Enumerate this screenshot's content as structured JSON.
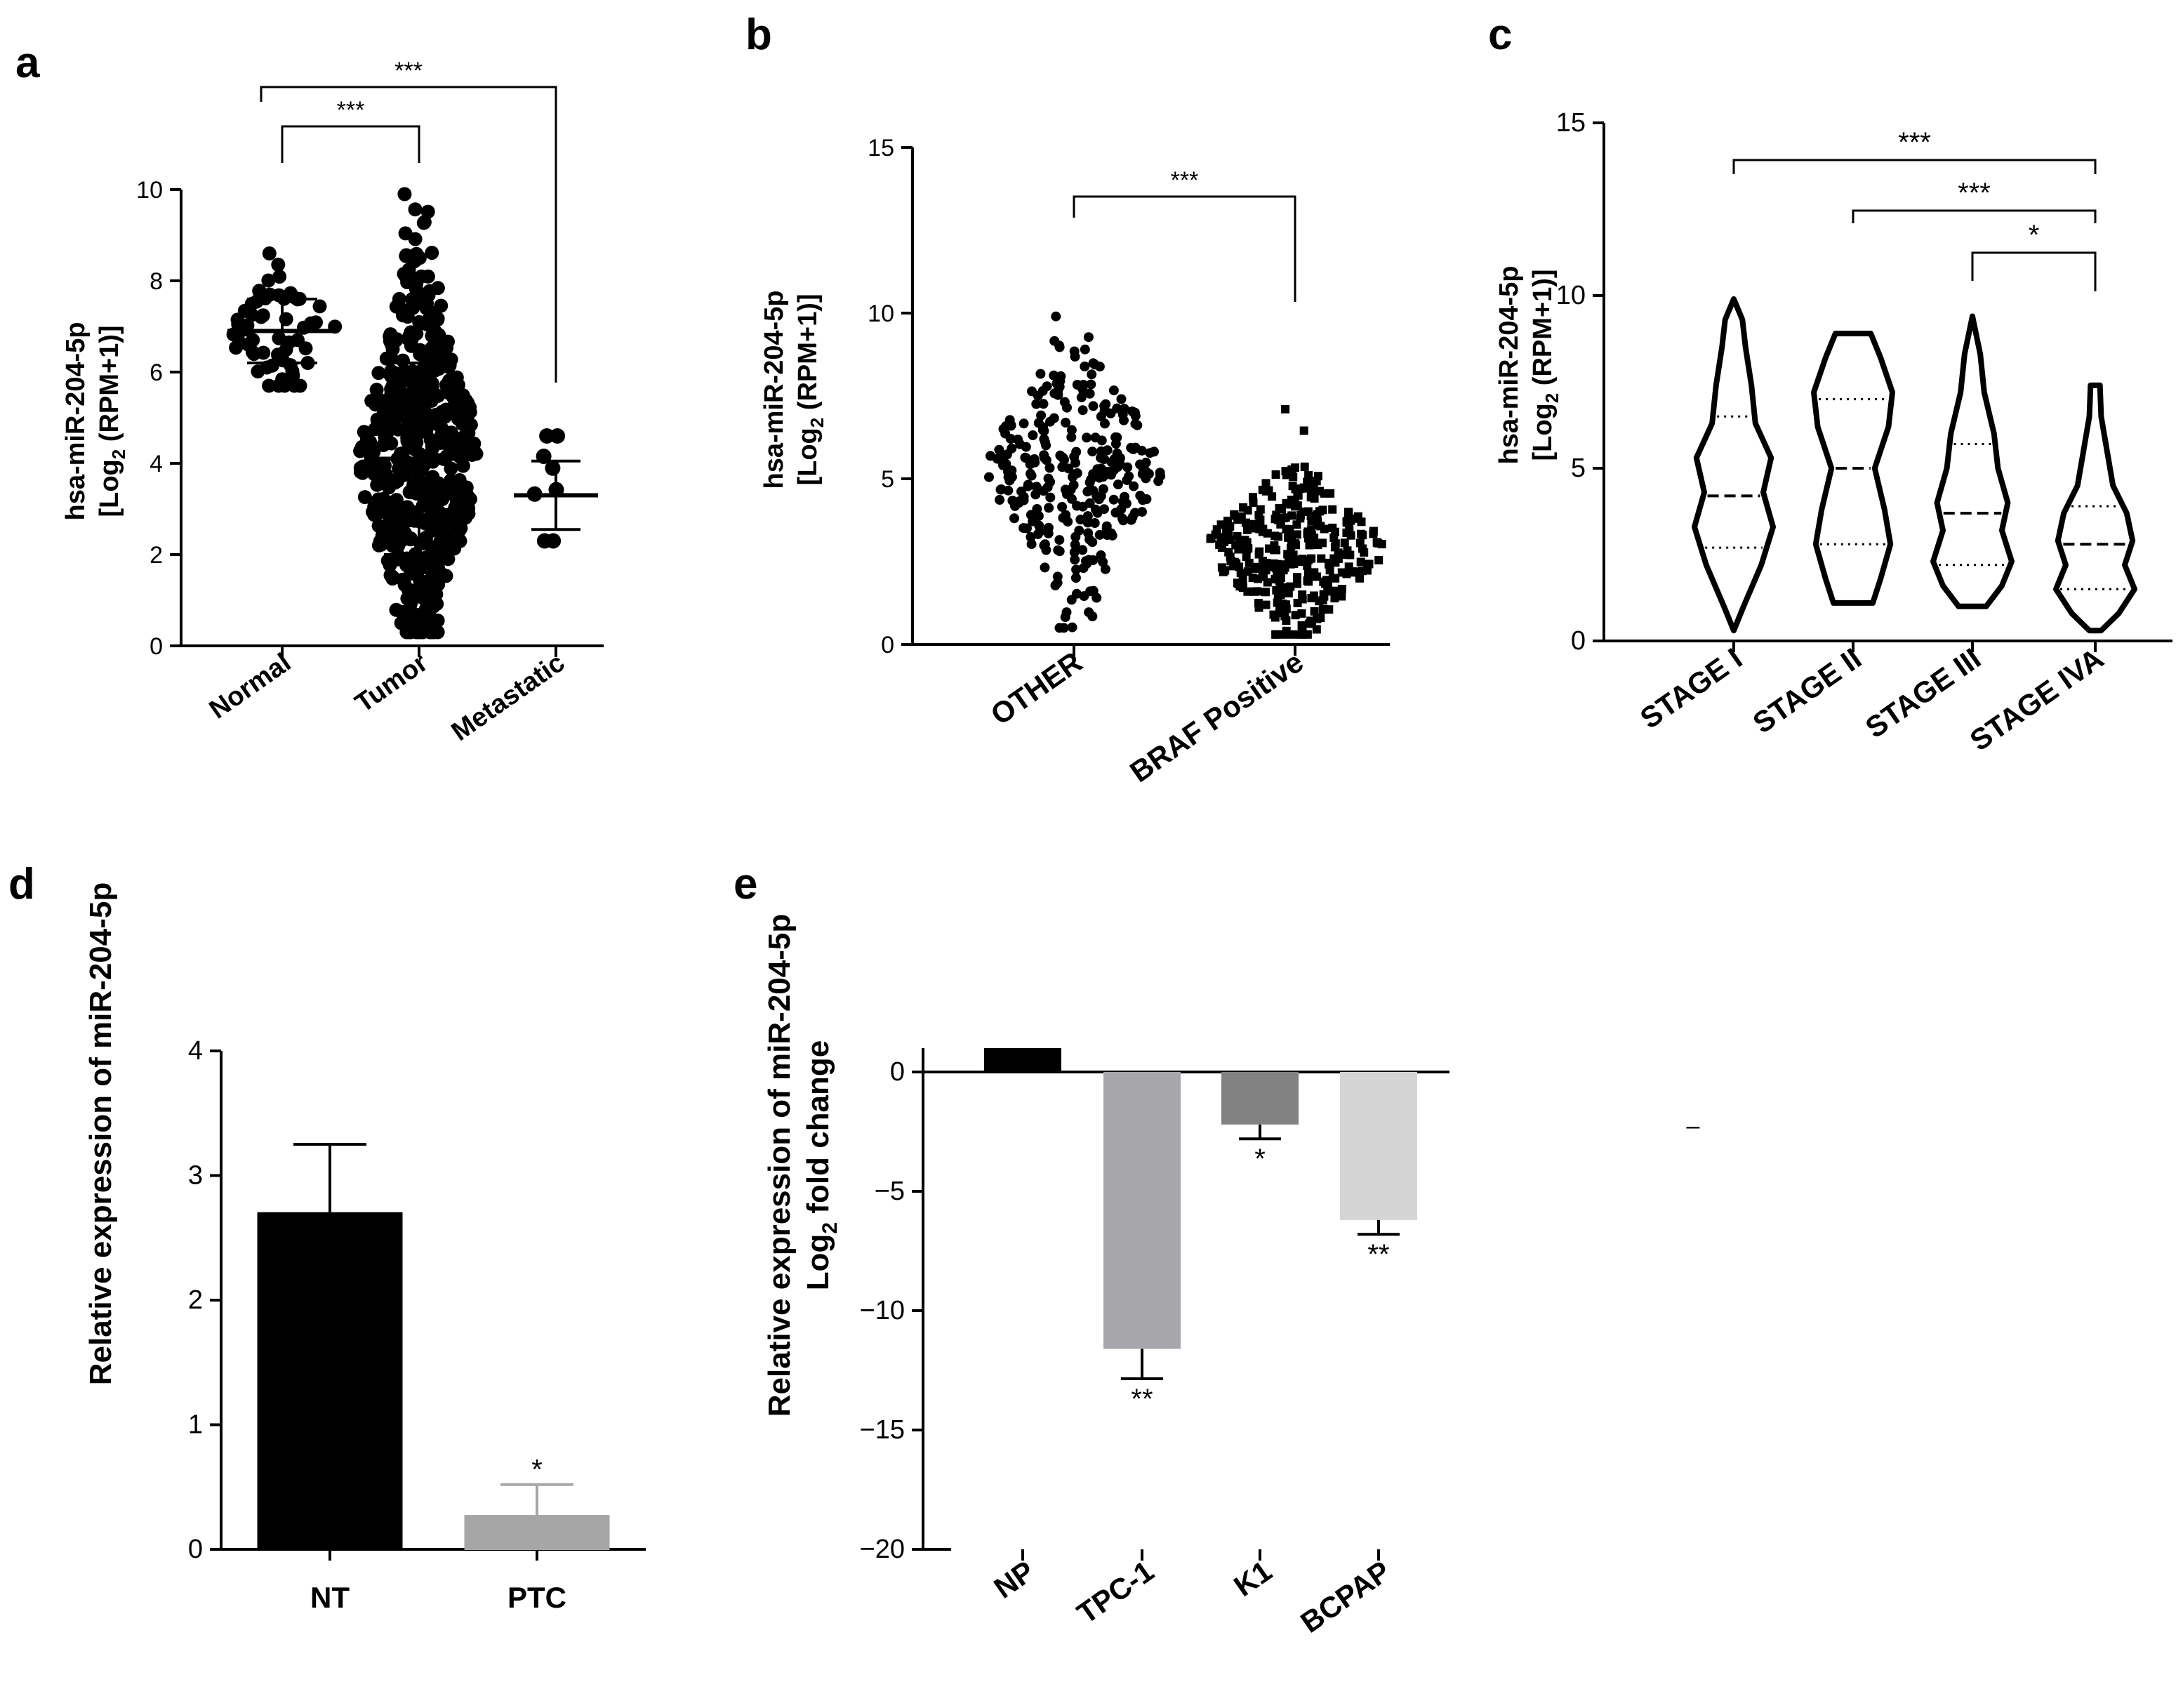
{
  "chart_data": [
    {
      "panel": "a",
      "type": "scatter",
      "ylabel_line1": "hsa-miR-204-5p",
      "ylabel_line2_pre": "[Log",
      "ylabel_line2_sub": "2",
      "ylabel_line2_post": " (RPM+1)]",
      "yticks": [
        "0",
        "2",
        "4",
        "6",
        "8",
        "10"
      ],
      "ylim": [
        0,
        10
      ],
      "categories": [
        "Normal",
        "Tumor",
        "Metastatic"
      ],
      "groups": [
        {
          "name": "Normal",
          "mean": 6.9,
          "sd": 0.7,
          "min": 5.7,
          "max": 8.6,
          "n": 60
        },
        {
          "name": "Tumor",
          "mean": 4.1,
          "sd": 2.1,
          "min": 0.3,
          "max": 9.9,
          "n": 520
        },
        {
          "name": "Metastatic",
          "mean": 3.3,
          "sd": 0.75,
          "min": 2.3,
          "max": 4.6,
          "n": 8
        }
      ],
      "comparisons": [
        {
          "from": "Normal",
          "to": "Tumor",
          "label": "***"
        },
        {
          "from": "Normal",
          "to": "Metastatic",
          "label": "***"
        }
      ]
    },
    {
      "panel": "b",
      "type": "scatter",
      "ylabel_line1": "hsa-miR-204-5p",
      "ylabel_line2_pre": "[Log",
      "ylabel_line2_sub": "2",
      "ylabel_line2_post": " (RPM+1)]",
      "yticks": [
        "0",
        "5",
        "10",
        "15"
      ],
      "ylim": [
        0,
        15
      ],
      "categories": [
        "OTHER",
        "BRAF Positive"
      ],
      "groups": [
        {
          "name": "OTHER",
          "mean": 5.3,
          "sd": 1.9,
          "min": 0.5,
          "max": 9.9,
          "n": 300
        },
        {
          "name": "BRAF Positive",
          "mean": 2.9,
          "sd": 1.2,
          "min": 0.3,
          "max": 7.1,
          "n": 330
        }
      ],
      "comparisons": [
        {
          "from": "OTHER",
          "to": "BRAF Positive",
          "label": "***"
        }
      ]
    },
    {
      "panel": "c",
      "type": "violin",
      "ylabel_line1": "hsa-miR-204-5p",
      "ylabel_line2_pre": "[Log",
      "ylabel_line2_sub": "2",
      "ylabel_line2_post": " (RPM+1)]",
      "yticks": [
        "0",
        "5",
        "10",
        "15"
      ],
      "ylim": [
        0,
        15
      ],
      "categories": [
        "STAGE I",
        "STAGE II",
        "STAGE III",
        "STAGE IVA"
      ],
      "groups": [
        {
          "name": "STAGE I",
          "min": 0.3,
          "max": 9.9,
          "q1": 2.7,
          "median": 4.2,
          "q3": 6.5,
          "profile": [
            [
              0.3,
              0
            ],
            [
              1.0,
              0.25
            ],
            [
              2.2,
              0.7
            ],
            [
              3.3,
              1.0
            ],
            [
              4.3,
              0.75
            ],
            [
              5.3,
              0.95
            ],
            [
              6.3,
              0.55
            ],
            [
              7.4,
              0.45
            ],
            [
              8.5,
              0.3
            ],
            [
              9.3,
              0.22
            ],
            [
              9.9,
              0
            ]
          ]
        },
        {
          "name": "STAGE II",
          "min": 1.1,
          "max": 8.9,
          "q1": 2.8,
          "median": 5.0,
          "q3": 7.0,
          "profile": [
            [
              1.1,
              0.5
            ],
            [
              1.8,
              0.7
            ],
            [
              2.8,
              0.95
            ],
            [
              3.8,
              0.8
            ],
            [
              5.0,
              0.55
            ],
            [
              6.2,
              0.9
            ],
            [
              7.2,
              1.0
            ],
            [
              8.2,
              0.7
            ],
            [
              8.9,
              0.45
            ]
          ]
        },
        {
          "name": "STAGE III",
          "min": 1.0,
          "max": 9.4,
          "q1": 2.2,
          "median": 3.7,
          "q3": 5.7,
          "profile": [
            [
              1.0,
              0.35
            ],
            [
              1.6,
              0.75
            ],
            [
              2.3,
              1.0
            ],
            [
              3.2,
              0.75
            ],
            [
              4.0,
              0.9
            ],
            [
              5.0,
              0.65
            ],
            [
              6.0,
              0.55
            ],
            [
              7.2,
              0.3
            ],
            [
              8.3,
              0.2
            ],
            [
              9.4,
              0
            ]
          ]
        },
        {
          "name": "STAGE IVA",
          "min": 0.3,
          "max": 7.4,
          "q1": 1.5,
          "median": 2.8,
          "q3": 3.9,
          "profile": [
            [
              0.3,
              0.15
            ],
            [
              0.8,
              0.6
            ],
            [
              1.5,
              1.0
            ],
            [
              2.2,
              0.75
            ],
            [
              2.9,
              0.95
            ],
            [
              3.7,
              0.8
            ],
            [
              4.5,
              0.45
            ],
            [
              5.5,
              0.3
            ],
            [
              6.5,
              0.15
            ],
            [
              7.4,
              0.12
            ]
          ]
        }
      ],
      "comparisons": [
        {
          "from": "STAGE I",
          "to": "STAGE IVA",
          "label": "***"
        },
        {
          "from": "STAGE II",
          "to": "STAGE IVA",
          "label": "***"
        },
        {
          "from": "STAGE III",
          "to": "STAGE IVA",
          "label": "*"
        }
      ]
    },
    {
      "panel": "d",
      "type": "bar",
      "ylabel": "Relative expression of miR-204-5p",
      "yticks": [
        "0",
        "1",
        "2",
        "3",
        "4"
      ],
      "ylim": [
        0,
        4
      ],
      "categories": [
        "NT",
        "PTC"
      ],
      "values": [
        2.7,
        0.27
      ],
      "errors": [
        0.55,
        0.25
      ],
      "colors": [
        "#000000",
        "#a6a6a6"
      ],
      "annotations": [
        "",
        "*"
      ]
    },
    {
      "panel": "e",
      "type": "bar",
      "ylabel_line1": "Relative expression of miR-204-5p",
      "ylabel_line2_pre": "Log",
      "ylabel_line2_sub": "2",
      "ylabel_line2_post": " fold change",
      "yticks": [
        "0",
        "−5",
        "−10",
        "−15",
        "−20"
      ],
      "ylim": [
        -20,
        1
      ],
      "categories": [
        "NP",
        "TPC-1",
        "K1",
        "BCPAP"
      ],
      "values": [
        1.0,
        -11.6,
        -2.2,
        -6.2
      ],
      "errors": [
        0,
        1.25,
        0.6,
        0.6
      ],
      "colors": [
        "#000000",
        "#a7a7ab",
        "#828282",
        "#d4d4d4"
      ],
      "annotations": [
        "",
        "**",
        "*",
        "**"
      ]
    }
  ],
  "stray_mark": "–"
}
